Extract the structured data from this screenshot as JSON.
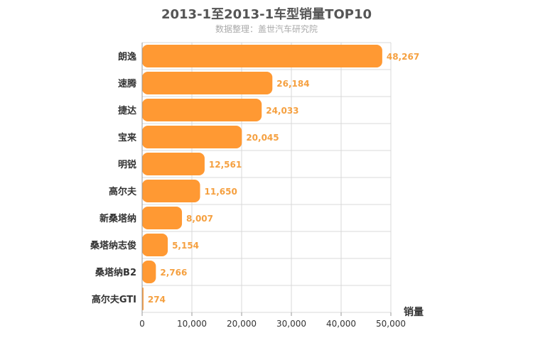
{
  "chart_data": {
    "type": "bar",
    "orientation": "horizontal",
    "title": "2013-1至2013-1车型销量TOP10",
    "subtitle": "数据整理：盖世汽车研究院",
    "categories": [
      "朗逸",
      "速腾",
      "捷达",
      "宝来",
      "明锐",
      "高尔夫",
      "新桑塔纳",
      "桑塔纳志俊",
      "桑塔纳B2",
      "高尔夫GTI"
    ],
    "values": [
      48267,
      26184,
      24033,
      20045,
      12561,
      11650,
      8007,
      5154,
      2766,
      274
    ],
    "value_labels": [
      "48,267",
      "26,184",
      "24,033",
      "20,045",
      "12,561",
      "11,650",
      "8,007",
      "5,154",
      "2,766",
      "274"
    ],
    "xlabel": "销量",
    "xlim": [
      0,
      50000
    ],
    "xticks": [
      0,
      10000,
      20000,
      30000,
      40000,
      50000
    ],
    "xtick_labels": [
      "0",
      "10,000",
      "20,000",
      "30,000",
      "40,000",
      "50,000"
    ],
    "bar_color": "#ff9933",
    "label_color": "#f5a040",
    "grid": true
  }
}
